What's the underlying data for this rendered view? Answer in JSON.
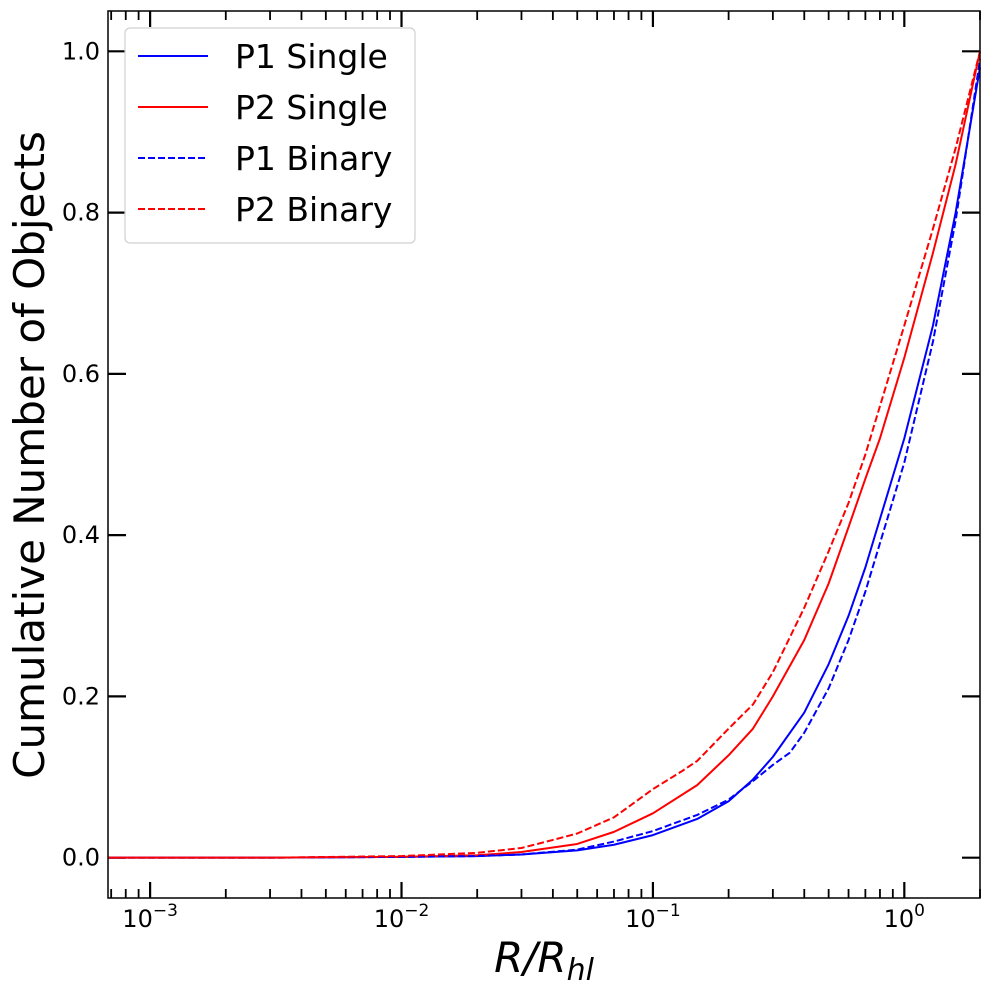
{
  "chart_data": {
    "type": "line",
    "title": "",
    "xlabel": "R/R_hl",
    "xlabel_parts": {
      "main": "R/R",
      "sub": "hl"
    },
    "ylabel": "Cumulative Number of Objects",
    "xscale": "log",
    "xlim": [
      0.00068,
      2.0
    ],
    "ylim": [
      -0.05,
      1.05
    ],
    "x_ticks": [
      {
        "value": 0.001,
        "base": "10",
        "exp": "−3"
      },
      {
        "value": 0.01,
        "base": "10",
        "exp": "−2"
      },
      {
        "value": 0.1,
        "base": "10",
        "exp": "−1"
      },
      {
        "value": 1,
        "base": "10",
        "exp": "0"
      }
    ],
    "y_ticks": [
      {
        "value": 0.0,
        "label": "0.0"
      },
      {
        "value": 0.2,
        "label": "0.2"
      },
      {
        "value": 0.4,
        "label": "0.4"
      },
      {
        "value": 0.6,
        "label": "0.6"
      },
      {
        "value": 0.8,
        "label": "0.8"
      },
      {
        "value": 1.0,
        "label": "1.0"
      }
    ],
    "legend_position": "top-left",
    "series": [
      {
        "name": "P1 Single",
        "color": "#0000ff",
        "dash": "solid",
        "points": [
          [
            0.00068,
            0
          ],
          [
            0.003,
            0
          ],
          [
            0.01,
            0.001
          ],
          [
            0.02,
            0.002
          ],
          [
            0.03,
            0.004
          ],
          [
            0.05,
            0.009
          ],
          [
            0.07,
            0.016
          ],
          [
            0.1,
            0.028
          ],
          [
            0.15,
            0.048
          ],
          [
            0.2,
            0.07
          ],
          [
            0.25,
            0.097
          ],
          [
            0.3,
            0.125
          ],
          [
            0.4,
            0.18
          ],
          [
            0.5,
            0.24
          ],
          [
            0.6,
            0.3
          ],
          [
            0.7,
            0.36
          ],
          [
            0.8,
            0.42
          ],
          [
            1.0,
            0.52
          ],
          [
            1.3,
            0.66
          ],
          [
            1.6,
            0.8
          ],
          [
            2.0,
            0.98
          ]
        ]
      },
      {
        "name": "P2 Single",
        "color": "#ff0000",
        "dash": "solid",
        "points": [
          [
            0.00068,
            0
          ],
          [
            0.003,
            0
          ],
          [
            0.01,
            0.001
          ],
          [
            0.02,
            0.003
          ],
          [
            0.03,
            0.007
          ],
          [
            0.05,
            0.017
          ],
          [
            0.07,
            0.032
          ],
          [
            0.1,
            0.055
          ],
          [
            0.15,
            0.09
          ],
          [
            0.2,
            0.127
          ],
          [
            0.25,
            0.16
          ],
          [
            0.3,
            0.2
          ],
          [
            0.4,
            0.27
          ],
          [
            0.5,
            0.34
          ],
          [
            0.6,
            0.41
          ],
          [
            0.7,
            0.47
          ],
          [
            0.8,
            0.52
          ],
          [
            1.0,
            0.62
          ],
          [
            1.3,
            0.75
          ],
          [
            1.6,
            0.86
          ],
          [
            2.0,
            1.0
          ]
        ]
      },
      {
        "name": "P1 Binary",
        "color": "#0000ff",
        "dash": "dashed",
        "points": [
          [
            0.00068,
            0
          ],
          [
            0.003,
            0
          ],
          [
            0.01,
            0.001
          ],
          [
            0.02,
            0.002
          ],
          [
            0.03,
            0.004
          ],
          [
            0.05,
            0.01
          ],
          [
            0.07,
            0.02
          ],
          [
            0.1,
            0.033
          ],
          [
            0.15,
            0.053
          ],
          [
            0.2,
            0.072
          ],
          [
            0.25,
            0.095
          ],
          [
            0.3,
            0.115
          ],
          [
            0.35,
            0.13
          ],
          [
            0.4,
            0.155
          ],
          [
            0.5,
            0.21
          ],
          [
            0.6,
            0.27
          ],
          [
            0.7,
            0.33
          ],
          [
            0.8,
            0.39
          ],
          [
            1.0,
            0.49
          ],
          [
            1.3,
            0.64
          ],
          [
            1.6,
            0.79
          ],
          [
            2.0,
            0.99
          ]
        ]
      },
      {
        "name": "P2 Binary",
        "color": "#ff0000",
        "dash": "dashed",
        "points": [
          [
            0.00068,
            0
          ],
          [
            0.003,
            0
          ],
          [
            0.01,
            0.002
          ],
          [
            0.02,
            0.006
          ],
          [
            0.03,
            0.012
          ],
          [
            0.04,
            0.022
          ],
          [
            0.05,
            0.03
          ],
          [
            0.07,
            0.05
          ],
          [
            0.1,
            0.085
          ],
          [
            0.13,
            0.107
          ],
          [
            0.15,
            0.12
          ],
          [
            0.2,
            0.16
          ],
          [
            0.25,
            0.19
          ],
          [
            0.3,
            0.23
          ],
          [
            0.4,
            0.31
          ],
          [
            0.5,
            0.38
          ],
          [
            0.6,
            0.44
          ],
          [
            0.7,
            0.5
          ],
          [
            0.8,
            0.56
          ],
          [
            1.0,
            0.66
          ],
          [
            1.3,
            0.78
          ],
          [
            1.6,
            0.88
          ],
          [
            2.0,
            1.0
          ]
        ]
      }
    ]
  }
}
